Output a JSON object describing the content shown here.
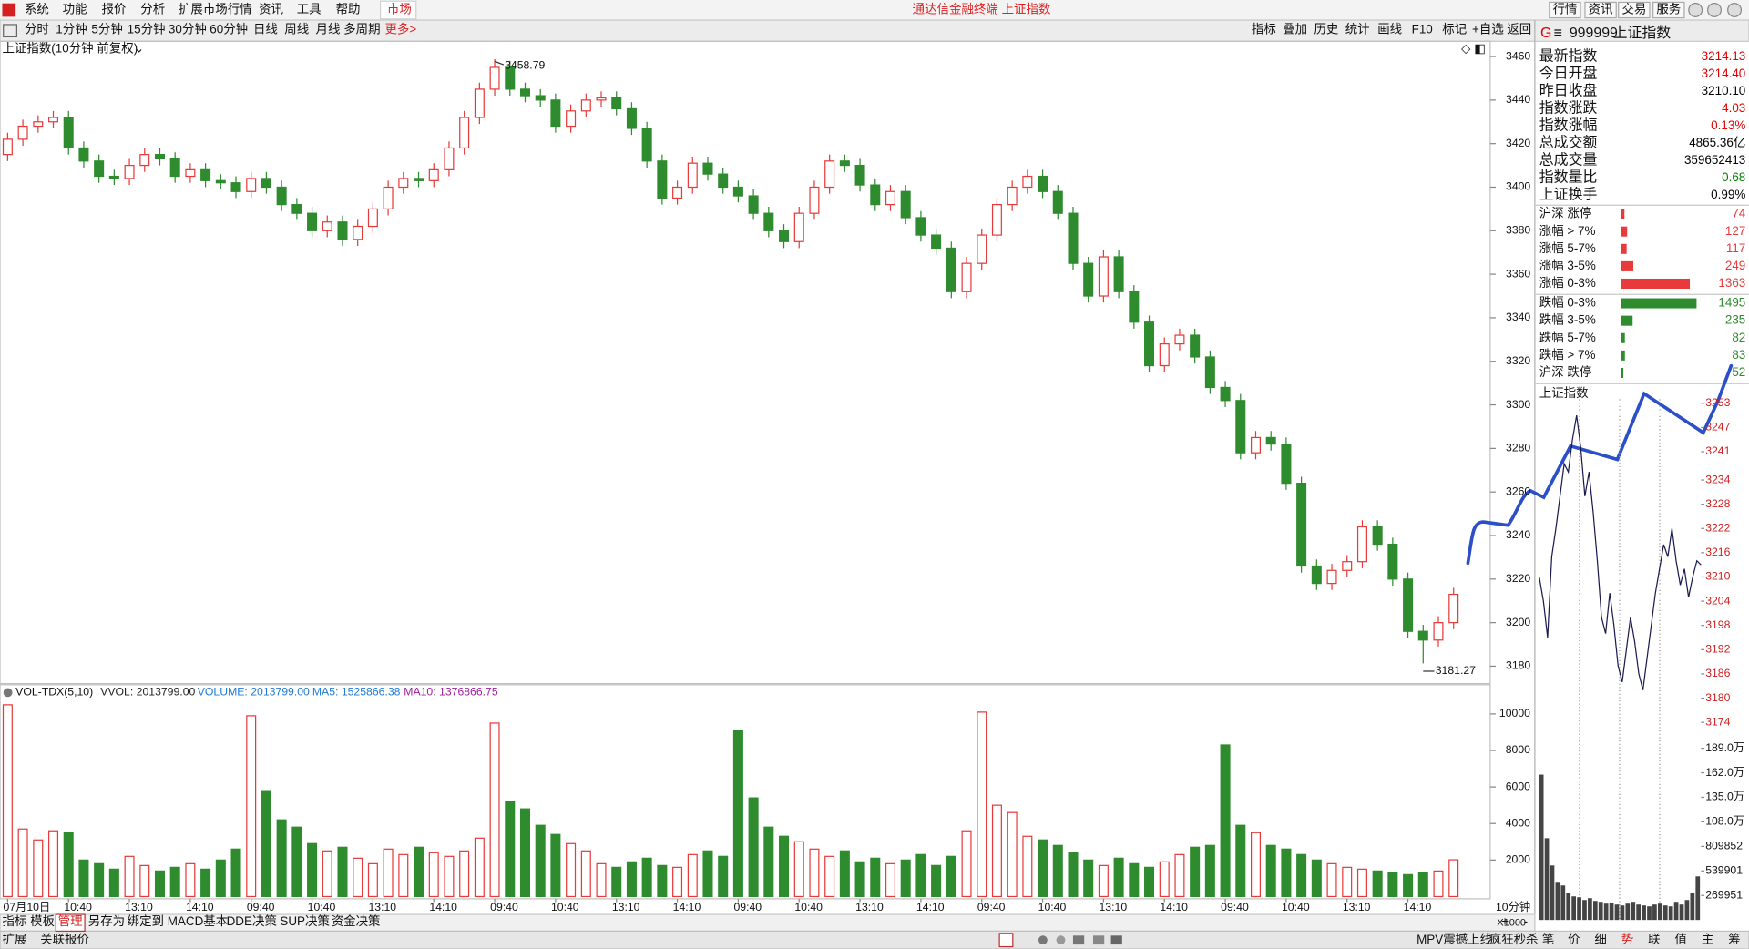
{
  "menu": {
    "items": [
      "系统",
      "功能",
      "报价",
      "分析",
      "扩展市场行情",
      "资讯",
      "工具",
      "帮助"
    ],
    "market": "市场",
    "title": "通达信金融终端 上证指数",
    "buttons": [
      "行情",
      "资讯",
      "交易",
      "服务"
    ]
  },
  "toolbar": {
    "periods": [
      "分时",
      "1分钟",
      "5分钟",
      "15分钟",
      "30分钟",
      "60分钟",
      "日线",
      "周线",
      "月线",
      "多周期"
    ],
    "more": "更多>",
    "tools": [
      "指标",
      "叠加",
      "历史",
      "统计",
      "画线",
      "F10",
      "标记",
      "+自选",
      "返回"
    ]
  },
  "chart_data": [
    {
      "type": "candlestick",
      "title": "上证指数(10分钟 前复权)",
      "xlabel": "10分钟",
      "up_color": "#e83a3a",
      "down_color": "#2e8b2e",
      "categories": [
        "07月10日",
        null,
        null,
        null,
        "10:40",
        null,
        null,
        null,
        "13:10",
        null,
        null,
        null,
        "14:10",
        null,
        null,
        null,
        "09:40",
        null,
        null,
        null,
        "10:40",
        null,
        null,
        null,
        "13:10",
        null,
        null,
        null,
        "14:10",
        null,
        null,
        null,
        "09:40",
        null,
        null,
        null,
        "10:40",
        null,
        null,
        null,
        "13:10",
        null,
        null,
        null,
        "14:10",
        null,
        null,
        null,
        "09:40",
        null,
        null,
        null,
        "10:40",
        null,
        null,
        null,
        "13:10",
        null,
        null,
        null,
        "14:10",
        null,
        null,
        null,
        "09:40",
        null,
        null,
        null,
        "10:40",
        null,
        null,
        null,
        "13:10",
        null,
        null,
        null,
        "14:10",
        null,
        null,
        null,
        "09:40",
        null,
        null,
        null,
        "10:40",
        null,
        null,
        null,
        "13:10",
        null,
        null,
        null,
        "14:10",
        null,
        null,
        null
      ],
      "open": [
        3415,
        3422,
        3428,
        3430,
        3432,
        3418,
        3412,
        3405,
        3404,
        3410,
        3415,
        3413,
        3405,
        3408,
        3403,
        3402,
        3398,
        3404,
        3400,
        3392,
        3388,
        3380,
        3384,
        3376,
        3382,
        3390,
        3400,
        3404,
        3403,
        3408,
        3418,
        3432,
        3445,
        3455,
        3445,
        3442,
        3440,
        3428,
        3435,
        3440,
        3441,
        3436,
        3427,
        3412,
        3395,
        3400,
        3411,
        3406,
        3400,
        3396,
        3388,
        3380,
        3375,
        3388,
        3400,
        3412,
        3410,
        3401,
        3392,
        3398,
        3386,
        3378,
        3372,
        3352,
        3365,
        3378,
        3392,
        3400,
        3405,
        3398,
        3388,
        3365,
        3350,
        3368,
        3352,
        3338,
        3318,
        3328,
        3332,
        3322,
        3308,
        3302,
        3278,
        3285,
        3282,
        3264,
        3226,
        3218,
        3224,
        3228,
        3244,
        3236,
        3220,
        3196,
        3192,
        3200
      ],
      "high": [
        3425,
        3431,
        3433,
        3435,
        3435,
        3421,
        3415,
        3408,
        3413,
        3418,
        3418,
        3416,
        3411,
        3411,
        3406,
        3405,
        3407,
        3407,
        3403,
        3395,
        3391,
        3387,
        3387,
        3385,
        3393,
        3403,
        3407,
        3407,
        3411,
        3421,
        3435,
        3448,
        3458.79,
        3458,
        3448,
        3445,
        3443,
        3438,
        3443,
        3444,
        3444,
        3439,
        3430,
        3415,
        3403,
        3414,
        3414,
        3409,
        3403,
        3399,
        3391,
        3383,
        3391,
        3403,
        3415,
        3415,
        3413,
        3404,
        3401,
        3401,
        3389,
        3381,
        3375,
        3368,
        3381,
        3395,
        3403,
        3408,
        3408,
        3401,
        3391,
        3368,
        3371,
        3371,
        3355,
        3341,
        3331,
        3335,
        3335,
        3325,
        3311,
        3305,
        3288,
        3288,
        3285,
        3267,
        3229,
        3227,
        3231,
        3247,
        3247,
        3239,
        3223,
        3199,
        3203,
        3216
      ],
      "low": [
        3412,
        3419,
        3425,
        3427,
        3415,
        3409,
        3402,
        3401,
        3401,
        3407,
        3410,
        3402,
        3402,
        3400,
        3399,
        3395,
        3395,
        3397,
        3389,
        3385,
        3377,
        3377,
        3373,
        3373,
        3379,
        3387,
        3397,
        3400,
        3400,
        3405,
        3415,
        3429,
        3442,
        3442,
        3439,
        3437,
        3425,
        3425,
        3432,
        3437,
        3433,
        3424,
        3409,
        3392,
        3392,
        3397,
        3403,
        3397,
        3393,
        3385,
        3377,
        3372,
        3372,
        3385,
        3397,
        3407,
        3398,
        3389,
        3389,
        3383,
        3375,
        3369,
        3349,
        3349,
        3362,
        3375,
        3389,
        3397,
        3395,
        3385,
        3362,
        3347,
        3347,
        3349,
        3335,
        3315,
        3315,
        3325,
        3319,
        3305,
        3299,
        3275,
        3275,
        3279,
        3261,
        3223,
        3215,
        3215,
        3221,
        3225,
        3233,
        3217,
        3193,
        3181.27,
        3189,
        3197
      ],
      "close": [
        3422,
        3428,
        3430,
        3432,
        3418,
        3412,
        3405,
        3404,
        3410,
        3415,
        3413,
        3405,
        3408,
        3403,
        3402,
        3398,
        3404,
        3400,
        3392,
        3388,
        3380,
        3384,
        3376,
        3382,
        3390,
        3400,
        3404,
        3403,
        3408,
        3418,
        3432,
        3445,
        3455,
        3445,
        3442,
        3440,
        3428,
        3435,
        3440,
        3441,
        3436,
        3427,
        3412,
        3395,
        3400,
        3411,
        3406,
        3400,
        3396,
        3388,
        3380,
        3375,
        3388,
        3400,
        3412,
        3410,
        3401,
        3392,
        3398,
        3386,
        3378,
        3372,
        3352,
        3365,
        3378,
        3392,
        3400,
        3405,
        3398,
        3388,
        3365,
        3350,
        3368,
        3352,
        3338,
        3318,
        3328,
        3332,
        3322,
        3308,
        3302,
        3278,
        3285,
        3282,
        3264,
        3226,
        3218,
        3224,
        3228,
        3244,
        3236,
        3220,
        3196,
        3192,
        3200,
        3213
      ],
      "max_label": 3458.79,
      "min_label": 3181.27,
      "ylim": [
        3172,
        3467
      ],
      "yticks": [
        3180,
        3200,
        3220,
        3240,
        3260,
        3280,
        3300,
        3320,
        3340,
        3360,
        3380,
        3400,
        3420,
        3440,
        3460
      ]
    },
    {
      "type": "bar",
      "title": "VOL-TDX(5,10)",
      "yunit": "X1000",
      "indicators": [
        {
          "text": "VVOL: 2013799.00",
          "color": "#222222"
        },
        {
          "text": "VOLUME: 2013799.00",
          "color": "#1f7bd6"
        },
        {
          "text": "MA5: 1525866.38",
          "color": "#1f7bd6"
        },
        {
          "text": "MA10: 1376866.75",
          "color": "#a020a0"
        }
      ],
      "values": [
        10500,
        3700,
        3100,
        3600,
        3500,
        2000,
        1800,
        1500,
        2200,
        1700,
        1400,
        1600,
        1800,
        1500,
        2000,
        2600,
        9900,
        5800,
        4200,
        3800,
        2900,
        2500,
        2700,
        2100,
        1800,
        2600,
        2300,
        2700,
        2400,
        2200,
        2500,
        3200,
        9500,
        5200,
        4800,
        3900,
        3400,
        2900,
        2500,
        1800,
        1600,
        1900,
        2100,
        1700,
        1600,
        2300,
        2500,
        2200,
        9100,
        5400,
        3800,
        3300,
        3000,
        2600,
        2200,
        2500,
        1900,
        2100,
        1800,
        2000,
        2300,
        1700,
        2200,
        3600,
        10100,
        5000,
        4600,
        3300,
        3100,
        2800,
        2400,
        2000,
        1700,
        2100,
        1800,
        1600,
        1900,
        2300,
        2700,
        2800,
        8300,
        3900,
        3500,
        2800,
        2600,
        2300,
        2000,
        1800,
        1600,
        1500,
        1400,
        1300,
        1200,
        1300,
        1400,
        2013.799
      ],
      "ylim": [
        0,
        11600
      ],
      "yticks": [
        2000,
        4000,
        6000,
        8000,
        10000
      ]
    },
    {
      "type": "line",
      "title": "上证指数",
      "color": "#1a1a50",
      "tick_color": "#d02020",
      "values": [
        3210,
        3204,
        3195,
        3215,
        3222,
        3230,
        3238,
        3236,
        3244,
        3250,
        3242,
        3230,
        3236,
        3226,
        3214,
        3200,
        3196,
        3206,
        3198,
        3188,
        3184,
        3192,
        3200,
        3194,
        3186,
        3182,
        3190,
        3198,
        3206,
        3212,
        3218,
        3215,
        3222,
        3214,
        3208,
        3212,
        3205,
        3210,
        3214,
        3213
      ],
      "ylim": [
        3172,
        3254
      ],
      "yticks": [
        3174,
        3180,
        3186,
        3192,
        3198,
        3204,
        3210,
        3216,
        3222,
        3228,
        3234,
        3241,
        3247,
        3253
      ]
    },
    {
      "type": "bar",
      "color": "#444444",
      "values": [
        1600000,
        900000,
        600000,
        420000,
        380000,
        300000,
        260000,
        250000,
        220000,
        240000,
        210000,
        200000,
        180000,
        190000,
        170000,
        160000,
        180000,
        200000,
        170000,
        160000,
        150000,
        170000,
        180000,
        160000,
        150000,
        200000,
        170000,
        220000,
        300000,
        480000
      ],
      "ylim": [
        0,
        2025000
      ],
      "yticks": [
        269951,
        539901,
        809852,
        {
          "value": 1080000,
          "label": "108.0万"
        },
        {
          "value": 1350000,
          "label": "135.0万"
        },
        {
          "value": 1620000,
          "label": "162.0万"
        },
        {
          "value": 1890000,
          "label": "189.0万"
        }
      ]
    }
  ],
  "quote_panel": {
    "code": "999999",
    "name": "上证指数",
    "rows": [
      {
        "label": "最新指数",
        "value": "3214.13",
        "color": "#e00000"
      },
      {
        "label": "今日开盘",
        "value": "3214.40",
        "color": "#e00000"
      },
      {
        "label": "昨日收盘",
        "value": "3210.10",
        "color": "#000000"
      },
      {
        "label": "指数涨跌",
        "value": "4.03",
        "color": "#e00000"
      },
      {
        "label": "指数涨幅",
        "value": "0.13%",
        "color": "#e00000"
      },
      {
        "label": "总成交额",
        "value": "4865.36亿",
        "color": "#000000"
      },
      {
        "label": "总成交量",
        "value": "359652413",
        "color": "#000000"
      },
      {
        "label": "指数量比",
        "value": "0.68",
        "color": "#008000"
      },
      {
        "label": "上证换手",
        "value": "0.99%",
        "color": "#000000"
      }
    ],
    "breadth": [
      {
        "label": "沪深 涨停",
        "count": 74,
        "color": "#e83a3a"
      },
      {
        "label": "涨幅 > 7%",
        "count": 127,
        "color": "#e83a3a"
      },
      {
        "label": "涨幅 5-7%",
        "count": 117,
        "color": "#e83a3a"
      },
      {
        "label": "涨幅 3-5%",
        "count": 249,
        "color": "#e83a3a"
      },
      {
        "label": "涨幅 0-3%",
        "count": 1363,
        "color": "#e83a3a"
      },
      {
        "label": "跌幅 0-3%",
        "count": 1495,
        "color": "#2e8b2e"
      },
      {
        "label": "跌幅 3-5%",
        "count": 235,
        "color": "#2e8b2e"
      },
      {
        "label": "跌幅 5-7%",
        "count": 82,
        "color": "#2e8b2e"
      },
      {
        "label": "跌幅 > 7%",
        "count": 83,
        "color": "#2e8b2e"
      },
      {
        "label": "沪深 跌停",
        "count": 52,
        "color": "#2e8b2e"
      }
    ]
  },
  "bottom_tabs": {
    "items": [
      "指标",
      "模板",
      "管理",
      "另存为",
      "绑定到",
      "MACD基本",
      "DDE决策",
      "SUP决策",
      "资金决策"
    ],
    "active": 2
  },
  "status_bar": {
    "left": [
      "扩展",
      "关联报价"
    ],
    "right": [
      "MPV震撼上线",
      "疯狂秒杀"
    ],
    "tabs": [
      "笔",
      "价",
      "细",
      "势",
      "联",
      "值",
      "主",
      "筹"
    ],
    "active": 3
  }
}
